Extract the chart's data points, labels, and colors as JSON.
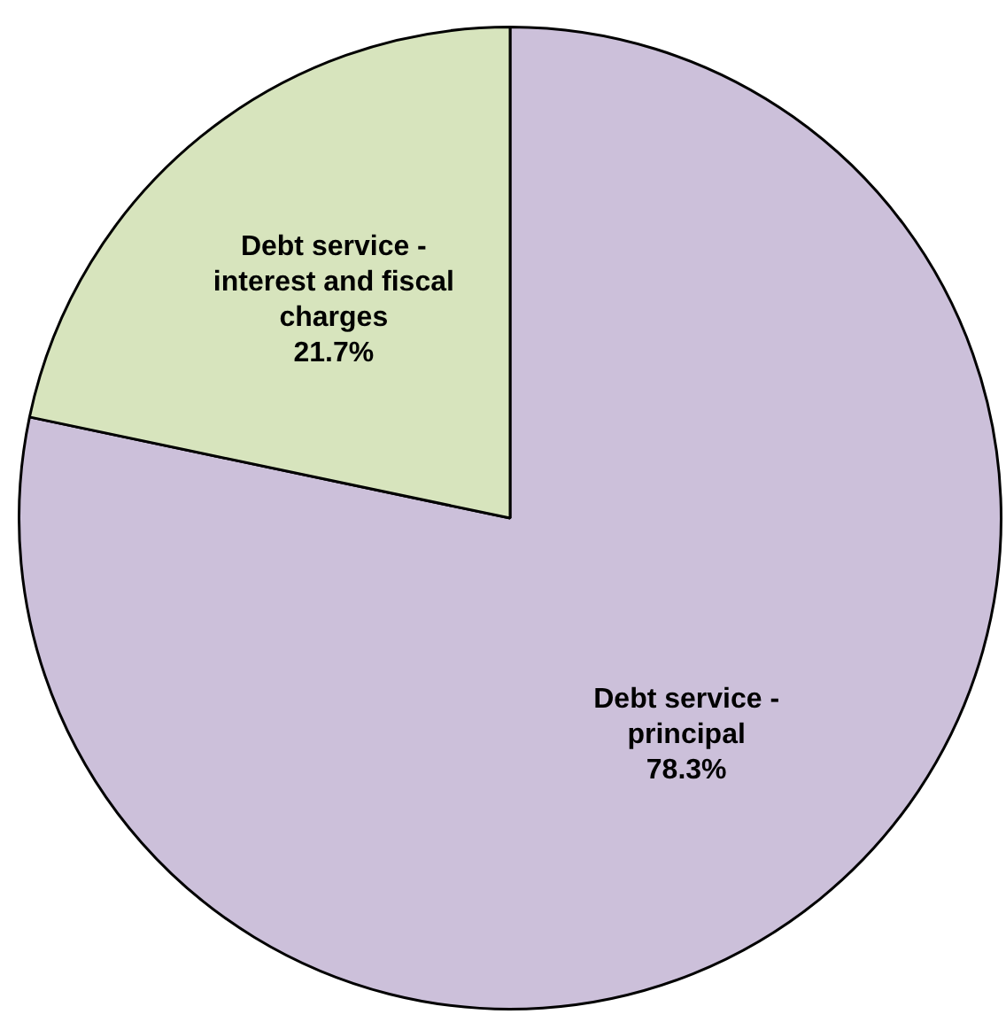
{
  "chart_data": {
    "type": "pie",
    "categories": [
      "Debt service - principal",
      "Debt service - interest and fiscal charges"
    ],
    "values": [
      78.3,
      21.7
    ],
    "colors": [
      "#ccc0da",
      "#d7e4bd"
    ],
    "value_labels": [
      "78.3%",
      "21.7%"
    ],
    "legend": false
  }
}
